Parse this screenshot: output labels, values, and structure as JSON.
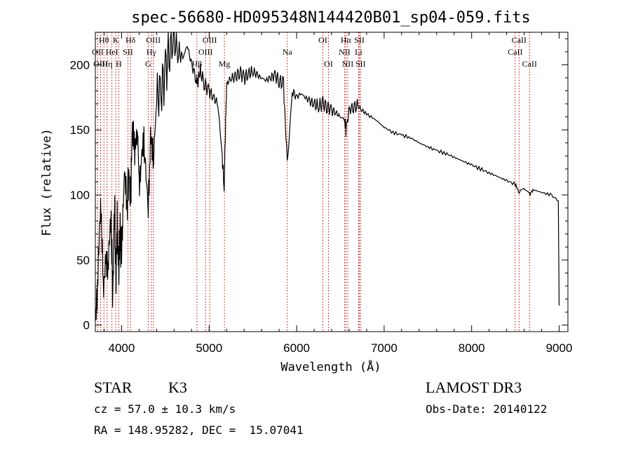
{
  "chart_data": {
    "type": "line",
    "title": "spec-56680-HD095348N144420B01_sp04-059.fits",
    "xlabel": "Wavelength (Å)",
    "ylabel": "Flux (relative)",
    "xlim": [
      3700,
      9100
    ],
    "ylim": [
      -5,
      225
    ],
    "xticks": [
      4000,
      5000,
      6000,
      7000,
      8000,
      9000
    ],
    "yticks": [
      0,
      50,
      100,
      150,
      200
    ],
    "x": [
      3700,
      3730,
      3760,
      3790,
      3820,
      3850,
      3880,
      3900,
      3920,
      3935,
      3950,
      3968,
      3980,
      4000,
      4030,
      4060,
      4080,
      4102,
      4120,
      4150,
      4180,
      4200,
      4230,
      4260,
      4300,
      4330,
      4360,
      4400,
      4450,
      4500,
      4550,
      4600,
      4650,
      4700,
      4750,
      4800,
      4850,
      4861,
      4900,
      4950,
      5000,
      5050,
      5100,
      5150,
      5172,
      5183,
      5200,
      5250,
      5300,
      5350,
      5400,
      5450,
      5500,
      5550,
      5600,
      5650,
      5700,
      5750,
      5800,
      5850,
      5893,
      5950,
      6000,
      6050,
      6100,
      6150,
      6200,
      6250,
      6300,
      6350,
      6400,
      6450,
      6500,
      6550,
      6563,
      6600,
      6650,
      6700,
      6750,
      6800,
      6900,
      7000,
      7100,
      7200,
      7300,
      7400,
      7500,
      7600,
      7700,
      7800,
      7900,
      8000,
      8100,
      8200,
      8300,
      8400,
      8500,
      8542,
      8600,
      8662,
      8700,
      8800,
      8900,
      8990,
      9000
    ],
    "series": [
      {
        "name": "flux",
        "values": [
          15,
          40,
          85,
          30,
          60,
          45,
          75,
          25,
          95,
          30,
          80,
          35,
          70,
          60,
          110,
          85,
          120,
          95,
          140,
          130,
          155,
          110,
          120,
          135,
          95,
          140,
          120,
          175,
          180,
          195,
          215,
          220,
          210,
          205,
          215,
          200,
          190,
          185,
          195,
          185,
          180,
          175,
          170,
          130,
          105,
          140,
          185,
          190,
          190,
          195,
          190,
          193,
          195,
          192,
          190,
          188,
          190,
          192,
          188,
          185,
          125,
          180,
          175,
          178,
          175,
          172,
          170,
          168,
          170,
          168,
          165,
          163,
          160,
          158,
          150,
          165,
          168,
          168,
          165,
          162,
          158,
          152,
          148,
          146,
          144,
          140,
          137,
          134,
          132,
          129,
          126,
          123,
          120,
          117,
          114,
          111,
          108,
          102,
          106,
          100,
          104,
          102,
          100,
          96,
          15
        ]
      }
    ],
    "lines": [
      {
        "name": "Hθ",
        "wavelength": 3798,
        "row": 1
      },
      {
        "name": "OII",
        "wavelength": 3727,
        "row": 2
      },
      {
        "name": "OIII",
        "wavelength": 3760,
        "row": 3
      },
      {
        "name": "Hη",
        "wavelength": 3835,
        "row": 3
      },
      {
        "name": "K",
        "wavelength": 3934,
        "row": 1
      },
      {
        "name": "HeI",
        "wavelength": 3889,
        "row": 2
      },
      {
        "name": "H",
        "wavelength": 3968,
        "row": 3
      },
      {
        "name": "Hδ",
        "wavelength": 4102,
        "row": 1
      },
      {
        "name": "SII",
        "wavelength": 4072,
        "row": 2
      },
      {
        "name": "OIII",
        "wavelength": 4363,
        "row": 1
      },
      {
        "name": "Hγ",
        "wavelength": 4340,
        "row": 2
      },
      {
        "name": "G",
        "wavelength": 4304,
        "row": 3
      },
      {
        "name": "Hβ",
        "wavelength": 4861,
        "row": 3
      },
      {
        "name": "OIII",
        "wavelength": 5007,
        "row": 1
      },
      {
        "name": "OIII",
        "wavelength": 4959,
        "row": 2
      },
      {
        "name": "Mg",
        "wavelength": 5175,
        "row": 3
      },
      {
        "name": "Na",
        "wavelength": 5893,
        "row": 2
      },
      {
        "name": "OI",
        "wavelength": 6300,
        "row": 1
      },
      {
        "name": "OI",
        "wavelength": 6364,
        "row": 3
      },
      {
        "name": "Hα",
        "wavelength": 6563,
        "row": 1
      },
      {
        "name": "NII",
        "wavelength": 6548,
        "row": 2
      },
      {
        "name": "NII",
        "wavelength": 6584,
        "row": 3
      },
      {
        "name": "SII",
        "wavelength": 6717,
        "row": 1
      },
      {
        "name": "Li",
        "wavelength": 6708,
        "row": 2
      },
      {
        "name": "SII",
        "wavelength": 6731,
        "row": 3
      },
      {
        "name": "CaII",
        "wavelength": 8542,
        "row": 1
      },
      {
        "name": "CaII",
        "wavelength": 8498,
        "row": 2
      },
      {
        "name": "CaII",
        "wavelength": 8662,
        "row": 3
      }
    ],
    "line_color": "#cc0000"
  },
  "info": {
    "object_type": "STAR",
    "subclass": "K3",
    "cz": "cz = 57.0 ± 10.3 km/s",
    "coords": "RA = 148.95282, DEC =  15.07041",
    "survey": "LAMOST DR3",
    "obs_date": "Obs-Date: 20140122"
  }
}
